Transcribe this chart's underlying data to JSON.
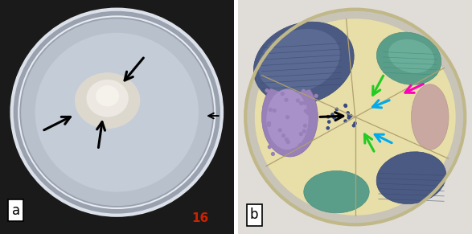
{
  "fig_width": 5.87,
  "fig_height": 2.91,
  "dpi": 100,
  "bg_color": "#ffffff",
  "label_a": "a",
  "label_b": "b",
  "label_16": "16",
  "label_16_color": "#cc2200"
}
